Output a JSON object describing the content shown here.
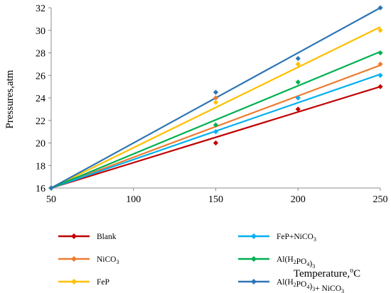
{
  "chart_data": {
    "type": "scatter",
    "xlabel": "Temperature,",
    "xlabel_sup": "o",
    "xlabel_unit": "C",
    "ylabel": "Pressures,atm",
    "xlim": [
      50,
      250
    ],
    "ylim": [
      16,
      32
    ],
    "x_ticks": [
      "50",
      "100",
      "150",
      "200",
      "250"
    ],
    "y_ticks": [
      "16",
      "18",
      "20",
      "22",
      "24",
      "26",
      "28",
      "30",
      "32"
    ],
    "x": [
      50,
      150,
      200,
      250
    ],
    "trendlines": true,
    "series": [
      {
        "name": "Blank",
        "name_parts": [
          [
            "Blank",
            false
          ]
        ],
        "color": "#c00000",
        "values": [
          16,
          20,
          23,
          25
        ],
        "trend_end": 25
      },
      {
        "name": "NiCO3",
        "name_parts": [
          [
            "NiCO",
            false
          ],
          [
            "3",
            true
          ]
        ],
        "color": "#ed7d31",
        "values": [
          16,
          24,
          24,
          27
        ],
        "trend_end": 26.9
      },
      {
        "name": "FeP",
        "name_parts": [
          [
            "FeP",
            false
          ]
        ],
        "color": "#ffc000",
        "values": [
          16,
          23.6,
          27,
          30
        ],
        "trend_end": 30.3
      },
      {
        "name": "FeP+NiCO3",
        "name_parts": [
          [
            "FeP+NiCO",
            false
          ],
          [
            "3",
            true
          ]
        ],
        "color": "#00b0f0",
        "values": [
          16,
          21,
          24,
          26
        ],
        "trend_end": 26.1
      },
      {
        "name": "Al(H2PO4)3",
        "name_parts": [
          [
            "Al(H",
            false
          ],
          [
            "2",
            true
          ],
          [
            "PO",
            false
          ],
          [
            "4",
            true
          ],
          [
            ")",
            false
          ],
          [
            "3",
            true
          ]
        ],
        "color": "#00b050",
        "values": [
          16,
          21.6,
          25.4,
          28
        ],
        "trend_end": 28.1
      },
      {
        "name": "Al(H2PO4)3+ NiCO3",
        "name_parts": [
          [
            "Al(H",
            false
          ],
          [
            "2",
            true
          ],
          [
            "PO",
            false
          ],
          [
            "4",
            true
          ],
          [
            ")",
            false
          ],
          [
            "3",
            true
          ],
          [
            "+ NiCO",
            false
          ],
          [
            "3",
            true
          ]
        ],
        "color": "#2e75b6",
        "values": [
          16,
          24.5,
          27.5,
          32
        ],
        "trend_end": 32
      }
    ],
    "legend": "bottom, two columns"
  }
}
